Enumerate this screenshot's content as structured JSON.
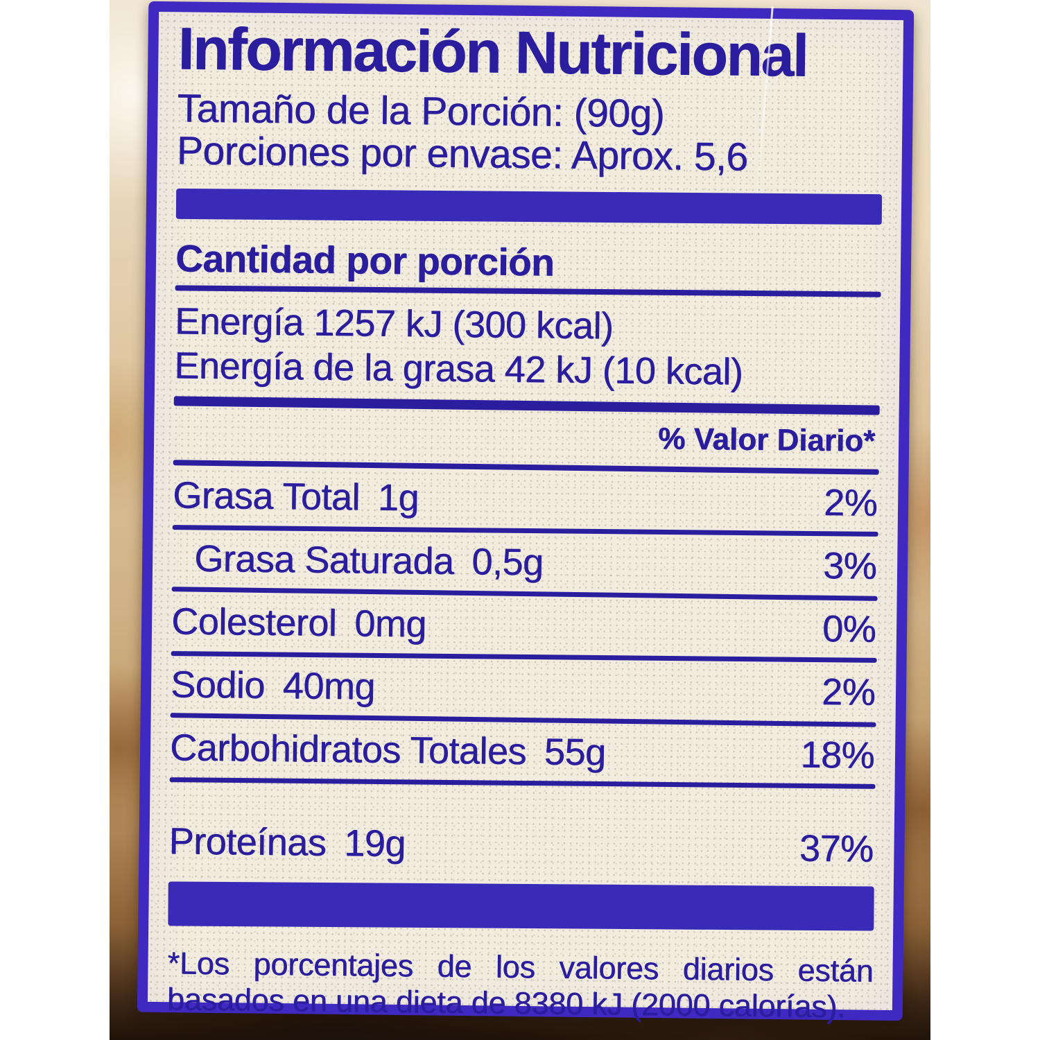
{
  "theme": {
    "ink": "#2b1e9e",
    "bar": "#3a2ab8",
    "border": "#4029c0",
    "paper": "#f2ecdf"
  },
  "label": {
    "title": "Información Nutricional",
    "serving_size": "Tamaño de la Porción: (90g)",
    "servings_per_container": "Porciones por envase: Aprox. 5,6",
    "amount_header": "Cantidad por porción",
    "energy_line1": "Energía 1257 kJ (300 kcal)",
    "energy_line2": "Energía de la grasa 42 kJ (10 kcal)",
    "dv_header": "% Valor Diario*",
    "rows": [
      {
        "name": "Grasa Total",
        "amount": "1g",
        "dv": "2%"
      },
      {
        "name": "Grasa Saturada",
        "amount": "0,5g",
        "dv": "3%"
      },
      {
        "name": "Colesterol",
        "amount": "0mg",
        "dv": "0%"
      },
      {
        "name": "Sodio",
        "amount": "40mg",
        "dv": "2%"
      },
      {
        "name": "Carbohidratos Totales",
        "amount": "55g",
        "dv": "18%"
      },
      {
        "name": "Proteínas",
        "amount": "19g",
        "dv": "37%"
      }
    ],
    "footnote_line1": "*Los porcentajes de los valores diarios están",
    "footnote_line2": "basados en una dieta de 8380 kJ (2000 calorías)."
  }
}
